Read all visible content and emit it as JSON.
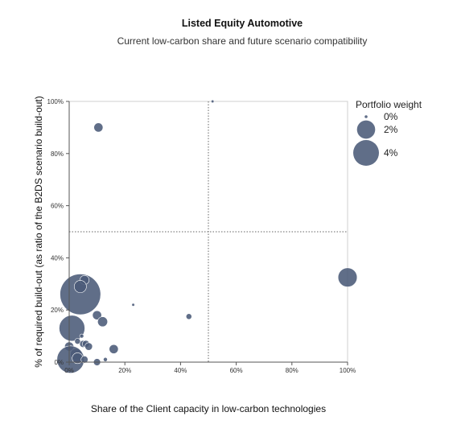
{
  "chart_data": {
    "type": "scatter",
    "title": "Listed Equity Automotive",
    "subtitle": "Current low-carbon share and future scenario compatibility",
    "xlabel": "Share of the Client capacity in low-carbon technologies",
    "ylabel": "% of required build-out (as ratio of the B2DS scenario build-out)",
    "xlim": [
      0,
      100
    ],
    "ylim": [
      0,
      100
    ],
    "x_ticks": [
      "0%",
      "20%",
      "40%",
      "60%",
      "80%",
      "100%"
    ],
    "y_ticks": [
      "0%",
      "20%",
      "40%",
      "60%",
      "80%",
      "100%"
    ],
    "reference_lines": {
      "x": 50,
      "y": 50
    },
    "legend": {
      "title": "Portfolio weight",
      "position": "top-right",
      "entries": [
        {
          "label": "0%",
          "weight": 0.05
        },
        {
          "label": "2%",
          "weight": 2
        },
        {
          "label": "4%",
          "weight": 4
        }
      ]
    },
    "color": "#4a5a78",
    "points": [
      {
        "x": 51.5,
        "y": 100,
        "weight": 0.05
      },
      {
        "x": 10.5,
        "y": 90,
        "weight": 0.5
      },
      {
        "x": 100,
        "y": 32.5,
        "weight": 2.2
      },
      {
        "x": 4,
        "y": 26,
        "weight": 10
      },
      {
        "x": 5.5,
        "y": 31.5,
        "weight": 0.5
      },
      {
        "x": 4,
        "y": 29,
        "weight": 0.9
      },
      {
        "x": 23,
        "y": 22,
        "weight": 0.05
      },
      {
        "x": 43,
        "y": 17.5,
        "weight": 0.2
      },
      {
        "x": 10,
        "y": 18,
        "weight": 0.5
      },
      {
        "x": 12,
        "y": 15.5,
        "weight": 0.6
      },
      {
        "x": 1,
        "y": 13,
        "weight": 4
      },
      {
        "x": 4.5,
        "y": 10,
        "weight": 0.1
      },
      {
        "x": 5,
        "y": 7,
        "weight": 0.3
      },
      {
        "x": 6,
        "y": 7,
        "weight": 0.3
      },
      {
        "x": 7,
        "y": 6,
        "weight": 0.35
      },
      {
        "x": 3,
        "y": 8,
        "weight": 0.2
      },
      {
        "x": 0,
        "y": 6,
        "weight": 0.5
      },
      {
        "x": 16,
        "y": 5,
        "weight": 0.5
      },
      {
        "x": 2.5,
        "y": 3,
        "weight": 0.8
      },
      {
        "x": 0.5,
        "y": 1,
        "weight": 4.5
      },
      {
        "x": 3,
        "y": 1.5,
        "weight": 0.7
      },
      {
        "x": 5.5,
        "y": 1,
        "weight": 0.3
      },
      {
        "x": 10,
        "y": 0,
        "weight": 0.3
      },
      {
        "x": 13,
        "y": 1,
        "weight": 0.1
      }
    ]
  }
}
